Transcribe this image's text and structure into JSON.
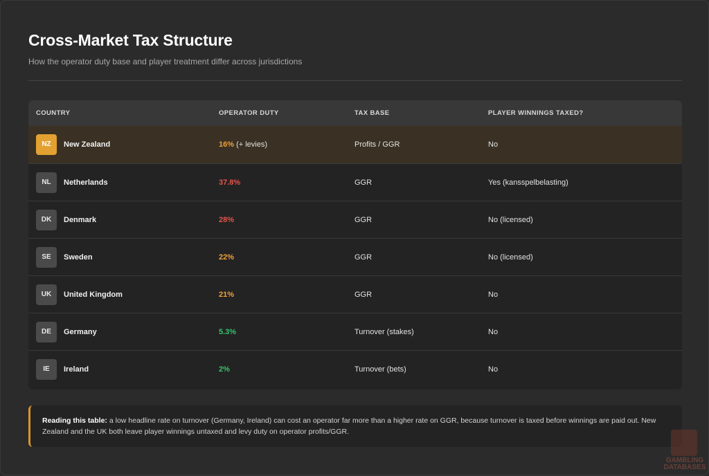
{
  "header": {
    "title": "Cross-Market Tax Structure",
    "subtitle": "How the operator duty base and player treatment differ across jurisdictions"
  },
  "table": {
    "columns": [
      "COUNTRY",
      "OPERATOR DUTY",
      "TAX BASE",
      "PLAYER WINNINGS TAXED?"
    ],
    "rows": [
      {
        "code": "NZ",
        "country": "New Zealand",
        "duty": "16%",
        "duty_extra": " (+ levies)",
        "duty_color": "#f0a13a",
        "base": "Profits / GGR",
        "winnings": "No",
        "highlighted": true
      },
      {
        "code": "NL",
        "country": "Netherlands",
        "duty": "37.8%",
        "duty_extra": "",
        "duty_color": "#e5534b",
        "base": "GGR",
        "winnings": "Yes (kansspelbelasting)"
      },
      {
        "code": "DK",
        "country": "Denmark",
        "duty": "28%",
        "duty_extra": "",
        "duty_color": "#e5534b",
        "base": "GGR",
        "winnings": "No (licensed)"
      },
      {
        "code": "SE",
        "country": "Sweden",
        "duty": "22%",
        "duty_extra": "",
        "duty_color": "#f0a13a",
        "base": "GGR",
        "winnings": "No (licensed)"
      },
      {
        "code": "UK",
        "country": "United Kingdom",
        "duty": "21%",
        "duty_extra": "",
        "duty_color": "#f0a13a",
        "base": "GGR",
        "winnings": "No"
      },
      {
        "code": "DE",
        "country": "Germany",
        "duty": "5.3%",
        "duty_extra": "",
        "duty_color": "#35c46b",
        "base": "Turnover (stakes)",
        "winnings": "No"
      },
      {
        "code": "IE",
        "country": "Ireland",
        "duty": "2%",
        "duty_extra": "",
        "duty_color": "#35c46b",
        "base": "Turnover (bets)",
        "winnings": "No"
      }
    ]
  },
  "note": {
    "lead": "Reading this table:",
    "text": " a low headline rate on turnover (Germany, Ireland) can cost an operator far more than a higher rate on GGR, because turnover is taxed before winnings are paid out. New Zealand and the UK both leave player winnings untaxed and levy duty on operator profits/GGR."
  },
  "watermark": {
    "text": "GAMBLING DATABASES",
    "icon": "logo-icon"
  },
  "colors": {
    "accent": "#e2a131",
    "high": "#e5534b",
    "mid": "#f0a13a",
    "low": "#35c46b"
  }
}
